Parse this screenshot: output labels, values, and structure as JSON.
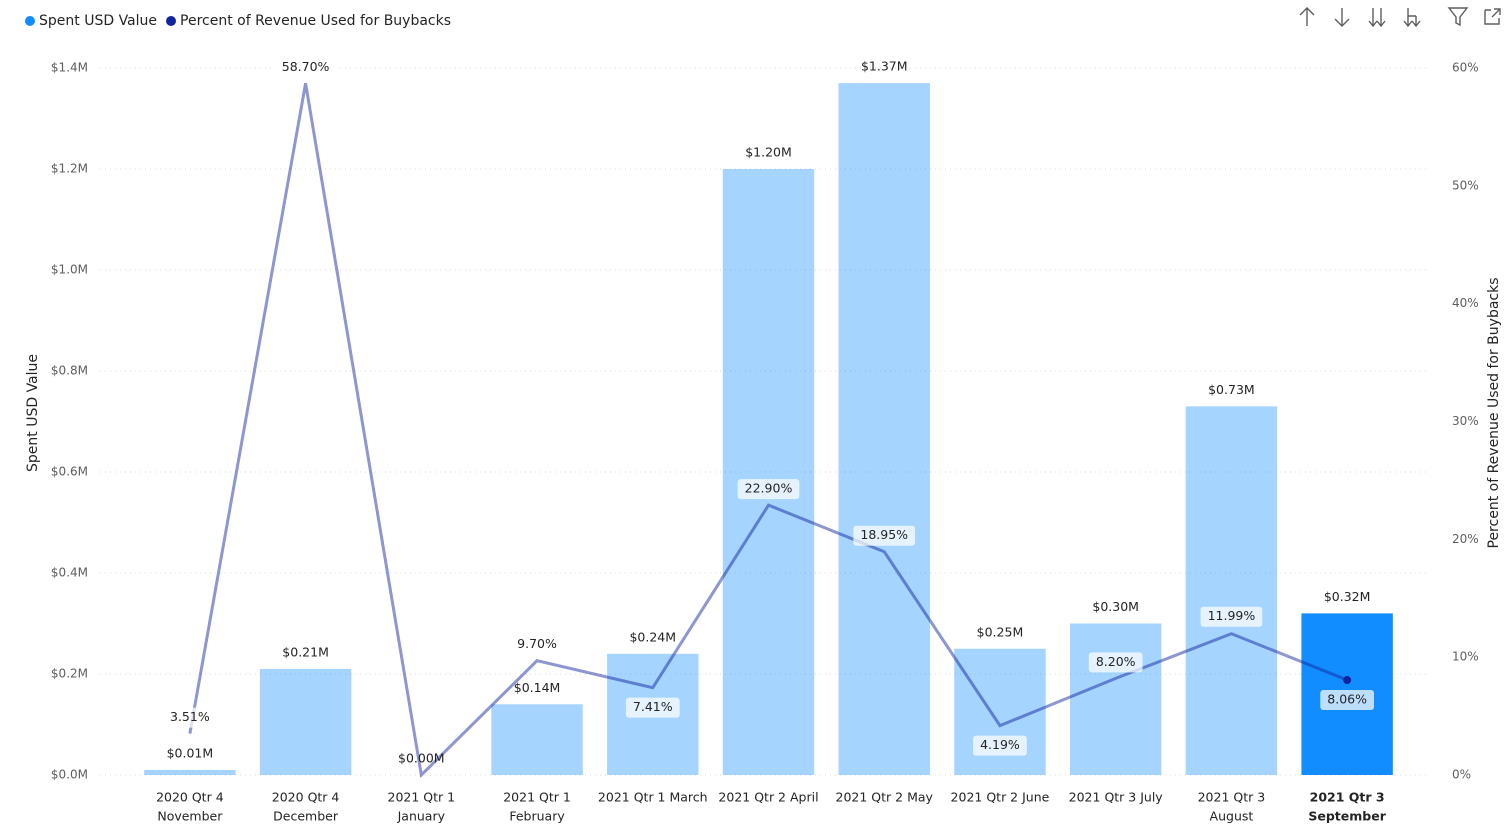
{
  "chart_data": {
    "type": "combo",
    "y_label": "Spent USD Value",
    "y2_label": "Percent of Revenue Used for Buybacks",
    "categories": [
      [
        "2020 Qtr 4",
        "November"
      ],
      [
        "2020 Qtr 4",
        "December"
      ],
      [
        "2021 Qtr 1",
        "January"
      ],
      [
        "2021 Qtr 1",
        "February"
      ],
      [
        "2021 Qtr 1 March"
      ],
      [
        "2021 Qtr 2 April"
      ],
      [
        "2021 Qtr 2 May"
      ],
      [
        "2021 Qtr 2 June"
      ],
      [
        "2021 Qtr 3 July"
      ],
      [
        "2021 Qtr 3",
        "August"
      ],
      [
        "2021 Qtr 3",
        "September"
      ]
    ],
    "series": [
      {
        "name": "Spent USD Value",
        "type": "bar",
        "color": "#118DFF",
        "values": [
          0.01,
          0.21,
          0.0,
          0.14,
          0.24,
          1.2,
          1.37,
          0.25,
          0.3,
          0.73,
          0.32
        ],
        "value_labels": [
          "$0.01M",
          "$0.21M",
          "$0.00M",
          "$0.14M",
          "$0.24M",
          "$1.20M",
          "$1.37M",
          "$0.25M",
          "$0.30M",
          "$0.73M",
          "$0.32M"
        ]
      },
      {
        "name": "Percent of Revenue Used for Buybacks",
        "type": "line",
        "axis": "y2",
        "color": "#12239E",
        "values": [
          3.51,
          58.7,
          0,
          9.7,
          7.41,
          22.9,
          18.95,
          4.19,
          8.2,
          11.99,
          8.06
        ],
        "value_labels": [
          "3.51%",
          "58.70%",
          null,
          "9.70%",
          "7.41%",
          "22.90%",
          "18.95%",
          "4.19%",
          "8.20%",
          "11.99%",
          "8.06%"
        ]
      }
    ],
    "highlight": 10,
    "dim_opacity": 0.38,
    "ylim": [
      0,
      1.4
    ],
    "yticks": [
      {
        "value": 0,
        "label": "$0.0M"
      },
      {
        "value": 0.2,
        "label": "$0.2M"
      },
      {
        "value": 0.4,
        "label": "$0.4M"
      },
      {
        "value": 0.6,
        "label": "$0.6M"
      },
      {
        "value": 0.8,
        "label": "$0.8M"
      },
      {
        "value": 1.0,
        "label": "$1.0M"
      },
      {
        "value": 1.2,
        "label": "$1.2M"
      },
      {
        "value": 1.4,
        "label": "$1.4M"
      }
    ],
    "y2lim": [
      0,
      60
    ],
    "y2ticks": [
      {
        "value": 0,
        "label": "0%"
      },
      {
        "value": 10,
        "label": "10%"
      },
      {
        "value": 20,
        "label": "20%"
      },
      {
        "value": 30,
        "label": "30%"
      },
      {
        "value": 40,
        "label": "40%"
      },
      {
        "value": 50,
        "label": "50%"
      },
      {
        "value": 60,
        "label": "60%"
      }
    ],
    "grid": true,
    "legend": "top-left"
  }
}
